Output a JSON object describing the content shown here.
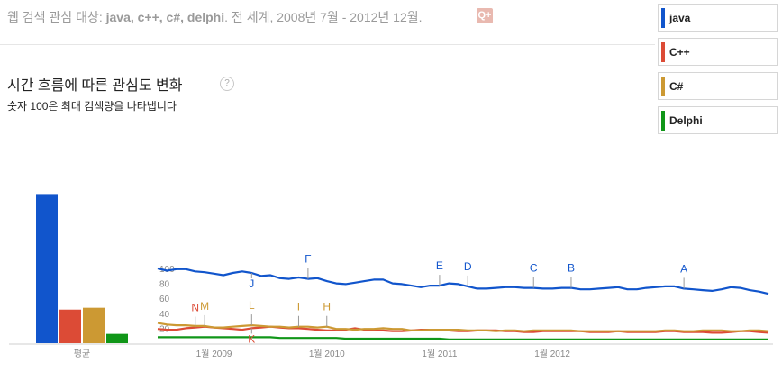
{
  "query": {
    "prefix": "웹 검색 관심 대상: ",
    "terms": "java, c++, c#, delphi",
    "suffix": ". 전 세계, 2008년 7월 - 2012년 12월.",
    "add_icon": "plus-icon",
    "add_label": "Q+"
  },
  "section": {
    "title": "시간 흐름에 따른 관심도 변화",
    "help_label": "?",
    "subtitle": "숫자 100은 최대 검색량을 나타냅니다"
  },
  "legend": {
    "items": [
      {
        "label": "java",
        "color": "#1155cc"
      },
      {
        "label": "C++",
        "color": "#dc4b36"
      },
      {
        "label": "C#",
        "color": "#cc9933"
      },
      {
        "label": "Delphi",
        "color": "#109618"
      }
    ]
  },
  "chart_data": {
    "type": "line",
    "x_tick_labels": [
      "1월 2009",
      "1월 2010",
      "1월 2011",
      "1월 2012"
    ],
    "y_tick_labels": [
      "100",
      "80",
      "60",
      "40",
      "20"
    ],
    "ylim": [
      0,
      100
    ],
    "grid": false,
    "average_bar": {
      "label": "평균",
      "values": [
        {
          "series": "java",
          "value": 80
        },
        {
          "series": "C++",
          "value": 18
        },
        {
          "series": "C#",
          "value": 19
        },
        {
          "series": "Delphi",
          "value": 5
        }
      ]
    },
    "series": [
      {
        "name": "java",
        "color": "#1155cc",
        "values": [
          100,
          97,
          99,
          99,
          96,
          95,
          93,
          91,
          94,
          96,
          94,
          90,
          91,
          87,
          86,
          88,
          86,
          87,
          83,
          80,
          79,
          81,
          83,
          85,
          85,
          80,
          79,
          77,
          75,
          77,
          77,
          80,
          79,
          76,
          73,
          73,
          74,
          75,
          75,
          74,
          74,
          73,
          73,
          74,
          74,
          72,
          72,
          73,
          74,
          75,
          72,
          72,
          74,
          75,
          76,
          76,
          73,
          72,
          71,
          70,
          72,
          75,
          74,
          71,
          69,
          66
        ]
      },
      {
        "name": "C++",
        "color": "#dc4b36",
        "values": [
          19,
          18,
          18,
          20,
          21,
          22,
          21,
          20,
          19,
          18,
          20,
          21,
          22,
          21,
          20,
          20,
          19,
          18,
          17,
          17,
          18,
          20,
          18,
          17,
          17,
          16,
          16,
          17,
          18,
          18,
          17,
          17,
          16,
          16,
          17,
          17,
          17,
          16,
          16,
          15,
          15,
          16,
          16,
          16,
          16,
          16,
          15,
          15,
          15,
          16,
          15,
          15,
          15,
          15,
          16,
          16,
          15,
          15,
          15,
          14,
          14,
          15,
          16,
          16,
          15,
          14
        ]
      },
      {
        "name": "C#",
        "color": "#cc9933",
        "values": [
          27,
          25,
          24,
          24,
          23,
          23,
          21,
          21,
          22,
          23,
          24,
          23,
          22,
          22,
          21,
          22,
          22,
          21,
          22,
          19,
          19,
          18,
          19,
          19,
          20,
          19,
          19,
          17,
          17,
          18,
          18,
          18,
          18,
          17,
          17,
          17,
          16,
          17,
          17,
          16,
          17,
          17,
          17,
          17,
          17,
          16,
          16,
          16,
          16,
          16,
          16,
          16,
          16,
          16,
          17,
          17,
          16,
          16,
          17,
          17,
          17,
          16,
          16,
          17,
          17,
          16
        ]
      },
      {
        "name": "Delphi",
        "color": "#109618",
        "values": [
          8,
          8,
          8,
          8,
          8,
          8,
          8,
          8,
          8,
          8,
          8,
          8,
          8,
          7,
          7,
          7,
          7,
          7,
          7,
          7,
          6,
          6,
          6,
          6,
          6,
          6,
          6,
          6,
          6,
          6,
          6,
          5,
          5,
          5,
          5,
          5,
          5,
          5,
          5,
          5,
          5,
          5,
          5,
          5,
          5,
          5,
          5,
          5,
          5,
          5,
          5,
          5,
          5,
          5,
          5,
          5,
          5,
          5,
          5,
          5,
          5,
          5,
          5,
          5,
          5,
          5
        ]
      }
    ],
    "annotations": [
      {
        "letter": "A",
        "series": "java",
        "index": 56
      },
      {
        "letter": "B",
        "series": "java",
        "index": 44
      },
      {
        "letter": "C",
        "series": "java",
        "index": 40
      },
      {
        "letter": "D",
        "series": "java",
        "index": 33
      },
      {
        "letter": "E",
        "series": "java",
        "index": 30
      },
      {
        "letter": "F",
        "series": "java",
        "index": 16
      },
      {
        "letter": "H",
        "series": "C#",
        "index": 18
      },
      {
        "letter": "I",
        "series": "C#",
        "index": 15
      },
      {
        "letter": "J",
        "series": "java",
        "index": 10
      },
      {
        "letter": "K",
        "series": "C++",
        "index": 10
      },
      {
        "letter": "L",
        "series": "C#",
        "index": 10
      },
      {
        "letter": "M",
        "series": "C#",
        "index": 5
      },
      {
        "letter": "N",
        "series": "C++",
        "index": 4
      }
    ]
  }
}
